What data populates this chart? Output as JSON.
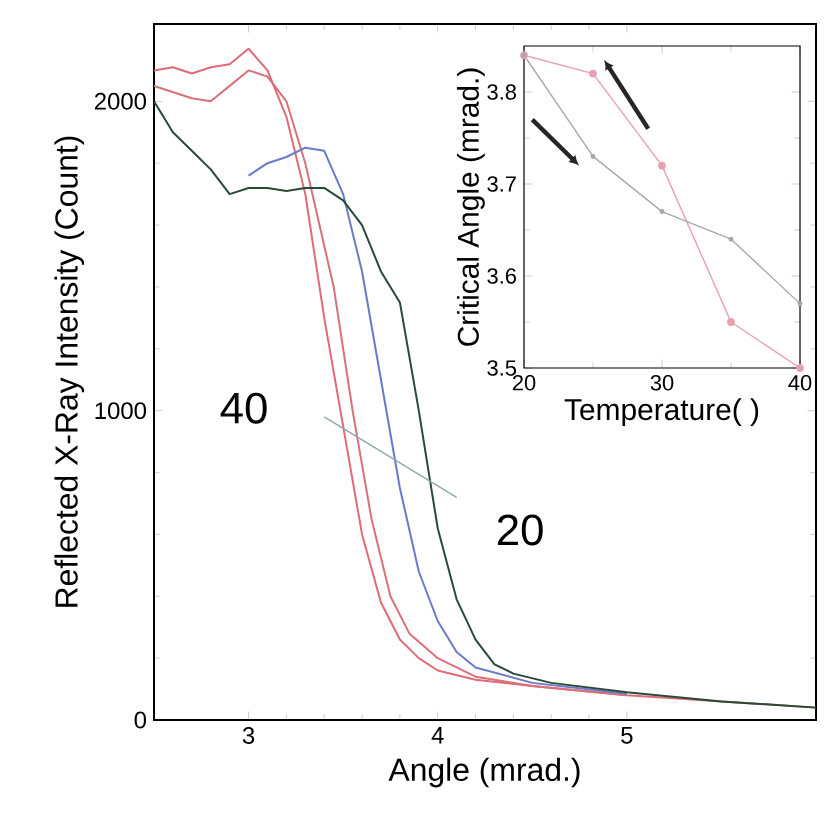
{
  "chart_data": [
    {
      "type": "line",
      "xlabel": "Angle (mrad.)",
      "ylabel": "Reflected X-Ray Intensity (Count)",
      "xlim": [
        2.5,
        6
      ],
      "ylim": [
        0,
        2250
      ],
      "xticks": [
        3,
        4,
        5
      ],
      "yticks": [
        0,
        1000,
        2000
      ],
      "line_style": "solid",
      "series": [
        {
          "color": "#e06a78",
          "x": [
            2.5,
            2.6,
            2.7,
            2.8,
            2.9,
            3.0,
            3.1,
            3.2,
            3.3,
            3.4,
            3.5,
            3.6,
            3.7,
            3.8,
            3.9,
            4.0,
            4.2,
            4.5,
            5.0,
            5.5,
            6.0
          ],
          "values": [
            2100,
            2110,
            2090,
            2110,
            2120,
            2170,
            2100,
            1950,
            1700,
            1300,
            950,
            600,
            380,
            260,
            200,
            160,
            130,
            110,
            80,
            60,
            40
          ]
        },
        {
          "color": "#d9707a",
          "x": [
            2.5,
            2.6,
            2.7,
            2.8,
            2.9,
            3.0,
            3.1,
            3.2,
            3.3,
            3.45,
            3.55,
            3.65,
            3.75,
            3.85,
            4.0,
            4.2,
            4.5,
            5.0
          ],
          "values": [
            2050,
            2030,
            2010,
            2000,
            2050,
            2100,
            2080,
            2000,
            1800,
            1400,
            1000,
            650,
            400,
            280,
            200,
            140,
            110,
            80
          ]
        },
        {
          "color": "#6a7ac8",
          "x": [
            3.0,
            3.1,
            3.2,
            3.3,
            3.4,
            3.5,
            3.6,
            3.7,
            3.8,
            3.9,
            4.0,
            4.1,
            4.2,
            4.5,
            5.0
          ],
          "values": [
            1760,
            1800,
            1820,
            1850,
            1840,
            1700,
            1450,
            1100,
            750,
            480,
            320,
            220,
            170,
            120,
            85
          ]
        },
        {
          "color": "#2a4a38",
          "x": [
            2.5,
            2.6,
            2.7,
            2.8,
            2.9,
            3.0,
            3.1,
            3.2,
            3.3,
            3.4,
            3.5,
            3.6,
            3.7,
            3.8,
            3.9,
            4.0,
            4.1,
            4.2,
            4.3,
            4.4,
            4.6,
            5.0,
            5.5,
            6.0
          ],
          "values": [
            2000,
            1900,
            1840,
            1780,
            1700,
            1720,
            1720,
            1710,
            1720,
            1720,
            1680,
            1600,
            1450,
            1350,
            1000,
            620,
            390,
            260,
            180,
            150,
            120,
            90,
            60,
            40
          ]
        },
        {
          "color": "#8fa8a8",
          "x": [
            3.4,
            4.1
          ],
          "values": [
            980,
            720
          ]
        }
      ],
      "annotations": [
        "40",
        "20"
      ]
    },
    {
      "type": "line",
      "xlabel": "Temperature(   )",
      "ylabel": "Critical Angle (mrad.)",
      "xlim": [
        20,
        40
      ],
      "ylim": [
        3.5,
        3.85
      ],
      "xticks": [
        20,
        30,
        40
      ],
      "yticks": [
        3.5,
        3.6,
        3.7,
        3.8
      ],
      "marker": "circle",
      "line_style": "solid",
      "series": [
        {
          "color": "#e8a0b0",
          "x": [
            20,
            25,
            30,
            35,
            40
          ],
          "values": [
            3.84,
            3.82,
            3.72,
            3.55,
            3.5
          ]
        },
        {
          "color": "#a8a8a8",
          "x": [
            20,
            25,
            30,
            35,
            40
          ],
          "values": [
            3.84,
            3.73,
            3.67,
            3.64,
            3.57
          ]
        }
      ]
    }
  ]
}
